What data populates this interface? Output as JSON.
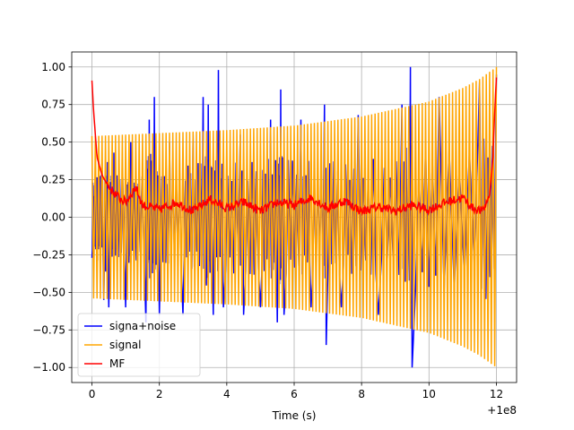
{
  "chart_data": {
    "type": "line",
    "title": "",
    "xlabel": "Time (s)",
    "ylabel": "",
    "x_offset_label": "+1e8",
    "xlim": [
      -0.6,
      12.6
    ],
    "ylim": [
      -1.1,
      1.1
    ],
    "x_ticks": [
      0,
      2,
      4,
      6,
      8,
      10,
      12
    ],
    "x_tick_labels": [
      "0",
      "2",
      "4",
      "6",
      "8",
      "10",
      "12"
    ],
    "y_ticks": [
      -1.0,
      -0.75,
      -0.5,
      -0.25,
      0.0,
      0.25,
      0.5,
      0.75,
      1.0
    ],
    "y_tick_labels": [
      "−1.00",
      "−0.75",
      "−0.50",
      "−0.25",
      "0.00",
      "0.25",
      "0.50",
      "0.75",
      "1.00"
    ],
    "grid": true,
    "legend_position": "lower-left",
    "series": [
      {
        "name": "signa+noise",
        "color": "#0000ff",
        "peaks": [
          {
            "x": 0.0,
            "y": -0.27
          },
          {
            "x": 0.1,
            "y": 0.4
          },
          {
            "x": 0.2,
            "y": 0.38
          },
          {
            "x": 0.35,
            "y": -0.55
          },
          {
            "x": 0.5,
            "y": -0.6
          },
          {
            "x": 0.65,
            "y": 0.43
          },
          {
            "x": 1.0,
            "y": -0.6
          },
          {
            "x": 1.15,
            "y": 0.5
          },
          {
            "x": 1.6,
            "y": -0.7
          },
          {
            "x": 1.7,
            "y": 0.65
          },
          {
            "x": 1.85,
            "y": 0.8
          },
          {
            "x": 2.0,
            "y": -0.65
          },
          {
            "x": 2.3,
            "y": 0.5
          },
          {
            "x": 2.7,
            "y": -0.65
          },
          {
            "x": 3.0,
            "y": 0.55
          },
          {
            "x": 3.3,
            "y": 0.8
          },
          {
            "x": 3.45,
            "y": 0.75
          },
          {
            "x": 3.6,
            "y": -0.65
          },
          {
            "x": 3.75,
            "y": 0.98
          },
          {
            "x": 3.9,
            "y": -0.6
          },
          {
            "x": 4.4,
            "y": 0.55
          },
          {
            "x": 4.5,
            "y": -0.65
          },
          {
            "x": 5.0,
            "y": -0.6
          },
          {
            "x": 5.3,
            "y": 0.65
          },
          {
            "x": 5.5,
            "y": -0.7
          },
          {
            "x": 5.6,
            "y": 0.85
          },
          {
            "x": 5.7,
            "y": -0.65
          },
          {
            "x": 6.2,
            "y": 0.65
          },
          {
            "x": 6.5,
            "y": -0.6
          },
          {
            "x": 6.9,
            "y": 0.75
          },
          {
            "x": 6.95,
            "y": -0.85
          },
          {
            "x": 7.4,
            "y": -0.6
          },
          {
            "x": 7.9,
            "y": 0.68
          },
          {
            "x": 8.5,
            "y": -0.65
          },
          {
            "x": 9.2,
            "y": 0.75
          },
          {
            "x": 9.45,
            "y": 1.0
          },
          {
            "x": 9.5,
            "y": -1.0
          },
          {
            "x": 10.3,
            "y": 0.8
          },
          {
            "x": 11.5,
            "y": 0.9
          },
          {
            "x": 12.0,
            "y": 0.95
          }
        ]
      },
      {
        "name": "signal",
        "color": "#ffa500",
        "envelope": [
          {
            "x": 0.0,
            "y": 0.54
          },
          {
            "x": 2.0,
            "y": 0.56
          },
          {
            "x": 4.0,
            "y": 0.58
          },
          {
            "x": 6.0,
            "y": 0.61
          },
          {
            "x": 8.0,
            "y": 0.67
          },
          {
            "x": 10.0,
            "y": 0.77
          },
          {
            "x": 11.0,
            "y": 0.86
          },
          {
            "x": 11.5,
            "y": 0.92
          },
          {
            "x": 12.0,
            "y": 1.0
          }
        ],
        "cycles": 120
      },
      {
        "name": "MF",
        "color": "#ff0000",
        "points": [
          {
            "x": 0.0,
            "y": 0.91
          },
          {
            "x": 0.05,
            "y": 0.7
          },
          {
            "x": 0.15,
            "y": 0.4
          },
          {
            "x": 0.3,
            "y": 0.28
          },
          {
            "x": 0.5,
            "y": 0.2
          },
          {
            "x": 0.8,
            "y": 0.13
          },
          {
            "x": 1.0,
            "y": 0.1
          },
          {
            "x": 1.3,
            "y": 0.2
          },
          {
            "x": 1.5,
            "y": 0.08
          },
          {
            "x": 2.0,
            "y": 0.05
          },
          {
            "x": 2.5,
            "y": 0.1
          },
          {
            "x": 3.0,
            "y": 0.04
          },
          {
            "x": 3.5,
            "y": 0.12
          },
          {
            "x": 4.0,
            "y": 0.06
          },
          {
            "x": 4.5,
            "y": 0.1
          },
          {
            "x": 5.0,
            "y": 0.04
          },
          {
            "x": 5.5,
            "y": 0.1
          },
          {
            "x": 6.0,
            "y": 0.08
          },
          {
            "x": 6.5,
            "y": 0.13
          },
          {
            "x": 7.0,
            "y": 0.06
          },
          {
            "x": 7.5,
            "y": 0.11
          },
          {
            "x": 8.0,
            "y": 0.04
          },
          {
            "x": 8.5,
            "y": 0.07
          },
          {
            "x": 9.0,
            "y": 0.04
          },
          {
            "x": 9.5,
            "y": 0.08
          },
          {
            "x": 10.0,
            "y": 0.05
          },
          {
            "x": 10.5,
            "y": 0.1
          },
          {
            "x": 11.0,
            "y": 0.13
          },
          {
            "x": 11.3,
            "y": 0.06
          },
          {
            "x": 11.6,
            "y": 0.04
          },
          {
            "x": 11.8,
            "y": 0.15
          },
          {
            "x": 11.9,
            "y": 0.4
          },
          {
            "x": 11.95,
            "y": 0.7
          },
          {
            "x": 12.0,
            "y": 0.93
          }
        ]
      }
    ]
  }
}
